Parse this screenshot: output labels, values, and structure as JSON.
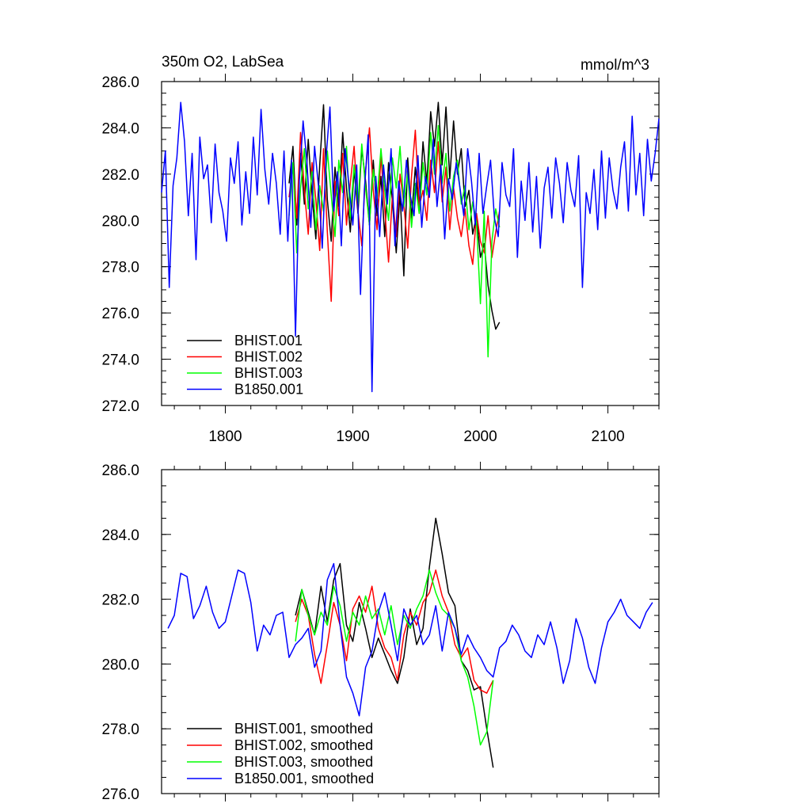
{
  "chart_data": [
    {
      "type": "line",
      "title": "350m O2, LabSea",
      "units": "mmol/m^3",
      "xlim": [
        1750,
        2140
      ],
      "ylim": [
        272,
        286
      ],
      "xticks": [
        1800,
        1900,
        2000,
        2100
      ],
      "xtick_labels": [
        "1800",
        "1900",
        "2000",
        "2100"
      ],
      "yticks": [
        272,
        274,
        276,
        278,
        280,
        282,
        284,
        286
      ],
      "ytick_labels": [
        "272.0",
        "274.0",
        "276.0",
        "278.0",
        "280.0",
        "282.0",
        "284.0",
        "286.0"
      ],
      "legend_position": "bottom-left",
      "series": [
        {
          "name": "BHIST.001",
          "color": "#000000",
          "x": [
            1850,
            1853,
            1856,
            1859,
            1862,
            1865,
            1868,
            1871,
            1874,
            1877,
            1880,
            1883,
            1886,
            1889,
            1892,
            1895,
            1898,
            1901,
            1904,
            1907,
            1910,
            1913,
            1916,
            1919,
            1922,
            1925,
            1928,
            1931,
            1934,
            1937,
            1940,
            1943,
            1946,
            1949,
            1952,
            1955,
            1958,
            1961,
            1964,
            1967,
            1970,
            1973,
            1976,
            1979,
            1982,
            1985,
            1988,
            1991,
            1994,
            1997,
            2000,
            2003,
            2006,
            2009,
            2012,
            2015
          ],
          "values": [
            281.6,
            283.2,
            279.8,
            282.9,
            280.7,
            283.5,
            281.1,
            279.2,
            282.4,
            285.0,
            280.9,
            279.1,
            282.3,
            280.6,
            283.8,
            281.4,
            279.5,
            282.2,
            280.3,
            283.1,
            281.7,
            279.8,
            282.6,
            280.2,
            281.9,
            279.3,
            282.5,
            280.8,
            278.6,
            281.2,
            277.6,
            282.7,
            280.1,
            282.3,
            280.4,
            283.4,
            281.6,
            284.7,
            283.2,
            285.1,
            282.4,
            284.9,
            281.8,
            284.3,
            282.0,
            283.1,
            280.6,
            281.3,
            279.4,
            280.2,
            278.4,
            279.0,
            277.2,
            276.1,
            275.3,
            275.6
          ]
        },
        {
          "name": "BHIST.002",
          "color": "#ff0000",
          "x": [
            1850,
            1853,
            1856,
            1859,
            1862,
            1865,
            1868,
            1871,
            1874,
            1877,
            1880,
            1883,
            1886,
            1889,
            1892,
            1895,
            1898,
            1901,
            1904,
            1907,
            1910,
            1913,
            1916,
            1919,
            1922,
            1925,
            1928,
            1931,
            1934,
            1937,
            1940,
            1943,
            1946,
            1949,
            1952,
            1955,
            1958,
            1961,
            1964,
            1967,
            1970,
            1973,
            1976,
            1979,
            1982,
            1985,
            1988,
            1991,
            1994,
            1997,
            2000,
            2003,
            2006,
            2009,
            2012,
            2015
          ],
          "values": [
            281.0,
            282.4,
            280.1,
            283.8,
            281.3,
            279.4,
            282.5,
            280.9,
            278.7,
            283.1,
            279.5,
            276.5,
            281.7,
            280.2,
            282.9,
            279.8,
            281.6,
            283.2,
            280.4,
            278.9,
            282.1,
            284.0,
            281.3,
            279.6,
            282.8,
            280.5,
            278.2,
            281.1,
            279.3,
            282.0,
            280.7,
            278.8,
            281.9,
            283.9,
            280.6,
            281.3,
            280.0,
            282.6,
            281.2,
            283.4,
            280.8,
            282.3,
            279.6,
            281.4,
            280.1,
            279.3,
            280.5,
            278.9,
            278.1,
            280.3,
            279.1,
            278.6,
            280.2,
            278.4,
            279.5,
            280.4
          ]
        },
        {
          "name": "BHIST.003",
          "color": "#00ff00",
          "x": [
            1850,
            1853,
            1856,
            1859,
            1862,
            1865,
            1868,
            1871,
            1874,
            1877,
            1880,
            1883,
            1886,
            1889,
            1892,
            1895,
            1898,
            1901,
            1904,
            1907,
            1910,
            1913,
            1916,
            1919,
            1922,
            1925,
            1928,
            1931,
            1934,
            1937,
            1940,
            1943,
            1946,
            1949,
            1952,
            1955,
            1958,
            1961,
            1964,
            1967,
            1970,
            1973,
            1976,
            1979,
            1982,
            1985,
            1988,
            1991,
            1994,
            1997,
            2000,
            2003,
            2006,
            2009,
            2012,
            2015
          ],
          "values": [
            280.2,
            282.5,
            278.6,
            281.4,
            283.1,
            280.5,
            282.1,
            279.6,
            281.5,
            280.4,
            283.0,
            281.1,
            279.3,
            282.6,
            281.2,
            283.2,
            280.1,
            282.4,
            280.7,
            283.3,
            281.4,
            279.8,
            282.2,
            280.9,
            283.1,
            281.3,
            280.0,
            282.7,
            281.4,
            283.2,
            280.6,
            282.1,
            279.7,
            281.6,
            280.3,
            282.5,
            281.1,
            283.8,
            282.0,
            284.1,
            281.6,
            282.9,
            280.4,
            281.9,
            282.6,
            280.7,
            281.5,
            279.6,
            280.8,
            279.9,
            276.4,
            280.4,
            274.1,
            279.1,
            280.5,
            279.7
          ]
        },
        {
          "name": "B1850.001",
          "color": "#0000ff",
          "x": [
            1750,
            1753,
            1756,
            1759,
            1762,
            1765,
            1768,
            1771,
            1774,
            1777,
            1780,
            1783,
            1786,
            1789,
            1792,
            1795,
            1798,
            1801,
            1804,
            1807,
            1810,
            1813,
            1816,
            1819,
            1822,
            1825,
            1828,
            1831,
            1834,
            1837,
            1840,
            1843,
            1846,
            1849,
            1852,
            1855,
            1858,
            1861,
            1864,
            1867,
            1870,
            1873,
            1876,
            1879,
            1882,
            1885,
            1888,
            1891,
            1894,
            1897,
            1900,
            1903,
            1906,
            1909,
            1912,
            1915,
            1918,
            1921,
            1924,
            1927,
            1930,
            1933,
            1936,
            1939,
            1942,
            1945,
            1948,
            1951,
            1954,
            1957,
            1960,
            1963,
            1966,
            1969,
            1972,
            1975,
            1978,
            1981,
            1984,
            1987,
            1990,
            1993,
            1996,
            1999,
            2002,
            2005,
            2008,
            2011,
            2014,
            2017,
            2020,
            2023,
            2026,
            2029,
            2032,
            2035,
            2038,
            2041,
            2044,
            2047,
            2050,
            2053,
            2056,
            2059,
            2062,
            2065,
            2068,
            2071,
            2074,
            2077,
            2080,
            2083,
            2086,
            2089,
            2092,
            2095,
            2098,
            2101,
            2104,
            2107,
            2110,
            2113,
            2116,
            2119,
            2122,
            2125,
            2128,
            2131,
            2134,
            2137,
            2140
          ],
          "values": [
            281.2,
            283.0,
            277.1,
            281.5,
            282.7,
            285.1,
            283.4,
            280.2,
            282.9,
            278.3,
            283.6,
            281.8,
            282.4,
            279.9,
            283.3,
            281.2,
            280.4,
            279.1,
            282.7,
            281.6,
            283.4,
            279.8,
            282.1,
            280.3,
            283.6,
            281.1,
            284.8,
            282.2,
            280.7,
            282.9,
            281.6,
            279.4,
            283.0,
            279.1,
            282.6,
            275.0,
            281.7,
            284.3,
            282.5,
            279.7,
            283.2,
            281.5,
            278.8,
            282.7,
            284.9,
            280.4,
            282.1,
            278.9,
            283.1,
            281.5,
            279.8,
            282.4,
            276.8,
            281.3,
            283.7,
            272.6,
            281.9,
            279.3,
            282.4,
            280.7,
            283.1,
            278.9,
            281.7,
            280.4,
            282.6,
            281.1,
            280.2,
            282.8,
            279.7,
            281.9,
            281.0,
            283.5,
            280.6,
            282.4,
            279.2,
            281.8,
            280.9,
            282.5,
            281.4,
            280.2,
            283.1,
            281.7,
            279.8,
            282.9,
            280.3,
            281.5,
            282.6,
            280.1,
            279.3,
            282.5,
            281.1,
            280.6,
            283.1,
            278.4,
            281.7,
            280.0,
            282.5,
            279.5,
            281.9,
            278.8,
            281.4,
            282.3,
            280.1,
            282.7,
            281.6,
            279.9,
            282.5,
            281.3,
            280.6,
            282.8,
            277.1,
            281.2,
            280.3,
            282.2,
            279.6,
            283.0,
            280.1,
            282.7,
            281.3,
            280.5,
            282.3,
            283.4,
            280.4,
            284.5,
            281.1,
            282.9,
            280.2,
            283.5,
            281.7,
            282.9,
            284.4
          ]
        }
      ]
    },
    {
      "type": "line",
      "title": "",
      "xlim": [
        1750,
        2140
      ],
      "ylim": [
        276,
        286
      ],
      "xticks": [
        1800,
        1900,
        2000,
        2100
      ],
      "yticks": [
        276,
        278,
        280,
        282,
        284,
        286
      ],
      "ytick_labels": [
        "276.0",
        "278.0",
        "280.0",
        "282.0",
        "284.0",
        "286.0"
      ],
      "legend_position": "bottom-left",
      "series": [
        {
          "name": "BHIST.001, smoothed",
          "color": "#000000",
          "x": [
            1855,
            1860,
            1865,
            1870,
            1875,
            1880,
            1885,
            1890,
            1895,
            1900,
            1905,
            1910,
            1915,
            1920,
            1925,
            1930,
            1935,
            1940,
            1945,
            1950,
            1955,
            1960,
            1965,
            1970,
            1975,
            1980,
            1985,
            1990,
            1995,
            2000,
            2005,
            2010
          ],
          "values": [
            281.5,
            282.3,
            281.6,
            280.9,
            282.4,
            281.3,
            282.6,
            283.1,
            281.2,
            280.7,
            281.9,
            281.1,
            280.2,
            280.8,
            280.3,
            279.8,
            279.4,
            280.2,
            281.7,
            280.6,
            281.1,
            283.0,
            284.5,
            283.4,
            282.2,
            281.8,
            280.1,
            279.8,
            279.2,
            279.3,
            278.0,
            276.8
          ]
        },
        {
          "name": "BHIST.002, smoothed",
          "color": "#ff0000",
          "x": [
            1855,
            1860,
            1865,
            1870,
            1875,
            1880,
            1885,
            1890,
            1895,
            1900,
            1905,
            1910,
            1915,
            1920,
            1925,
            1930,
            1935,
            1940,
            1945,
            1950,
            1955,
            1960,
            1965,
            1970,
            1975,
            1980,
            1985,
            1990,
            1995,
            2000,
            2005,
            2010
          ],
          "values": [
            281.3,
            282.0,
            281.5,
            280.3,
            279.4,
            280.6,
            281.9,
            281.2,
            280.1,
            281.7,
            282.1,
            281.6,
            282.4,
            281.1,
            280.5,
            280.2,
            279.5,
            280.9,
            281.6,
            281.2,
            281.9,
            282.2,
            282.9,
            282.1,
            281.6,
            280.6,
            280.2,
            280.5,
            279.5,
            279.2,
            279.1,
            279.5
          ]
        },
        {
          "name": "BHIST.003, smoothed",
          "color": "#00ff00",
          "x": [
            1855,
            1860,
            1865,
            1870,
            1875,
            1880,
            1885,
            1890,
            1895,
            1900,
            1905,
            1910,
            1915,
            1920,
            1925,
            1930,
            1935,
            1940,
            1945,
            1950,
            1955,
            1960,
            1965,
            1970,
            1975,
            1980,
            1985,
            1990,
            1995,
            2000,
            2005,
            2010
          ],
          "values": [
            280.7,
            282.3,
            281.5,
            280.9,
            281.6,
            281.2,
            282.4,
            281.8,
            280.7,
            281.6,
            281.2,
            282.1,
            281.4,
            281.7,
            280.9,
            281.8,
            280.6,
            281.5,
            281.1,
            281.7,
            282.1,
            282.9,
            282.2,
            281.7,
            281.5,
            281.1,
            280.1,
            279.6,
            278.7,
            277.5,
            277.9,
            279.5
          ]
        },
        {
          "name": "B1850.001, smoothed",
          "color": "#0000ff",
          "x": [
            1755,
            1760,
            1765,
            1770,
            1775,
            1780,
            1785,
            1790,
            1795,
            1800,
            1805,
            1810,
            1815,
            1820,
            1825,
            1830,
            1835,
            1840,
            1845,
            1850,
            1855,
            1860,
            1865,
            1870,
            1875,
            1880,
            1885,
            1890,
            1895,
            1900,
            1905,
            1910,
            1915,
            1920,
            1925,
            1930,
            1935,
            1940,
            1945,
            1950,
            1955,
            1960,
            1965,
            1970,
            1975,
            1980,
            1985,
            1990,
            1995,
            2000,
            2005,
            2010,
            2015,
            2020,
            2025,
            2030,
            2035,
            2040,
            2045,
            2050,
            2055,
            2060,
            2065,
            2070,
            2075,
            2080,
            2085,
            2090,
            2095,
            2100,
            2105,
            2110,
            2115,
            2120,
            2125,
            2130,
            2135
          ],
          "values": [
            281.1,
            281.5,
            282.8,
            282.7,
            281.4,
            281.8,
            282.4,
            281.6,
            281.1,
            281.3,
            282.1,
            282.9,
            282.8,
            281.9,
            280.4,
            281.2,
            280.9,
            281.5,
            281.6,
            280.2,
            280.6,
            280.8,
            281.1,
            279.9,
            280.4,
            282.6,
            283.1,
            281.2,
            279.6,
            279.1,
            278.4,
            279.9,
            280.4,
            281.6,
            282.2,
            281.2,
            280.1,
            281.7,
            281.2,
            281.5,
            280.6,
            280.9,
            281.8,
            280.4,
            281.6,
            281.1,
            280.3,
            280.9,
            280.5,
            280.2,
            279.8,
            279.6,
            280.5,
            280.7,
            281.2,
            280.9,
            280.4,
            280.2,
            280.9,
            280.6,
            281.3,
            280.5,
            279.4,
            280.1,
            281.4,
            280.8,
            279.9,
            279.4,
            280.5,
            281.3,
            281.6,
            282.0,
            281.5,
            281.3,
            281.1,
            281.6,
            281.9
          ]
        }
      ]
    }
  ]
}
